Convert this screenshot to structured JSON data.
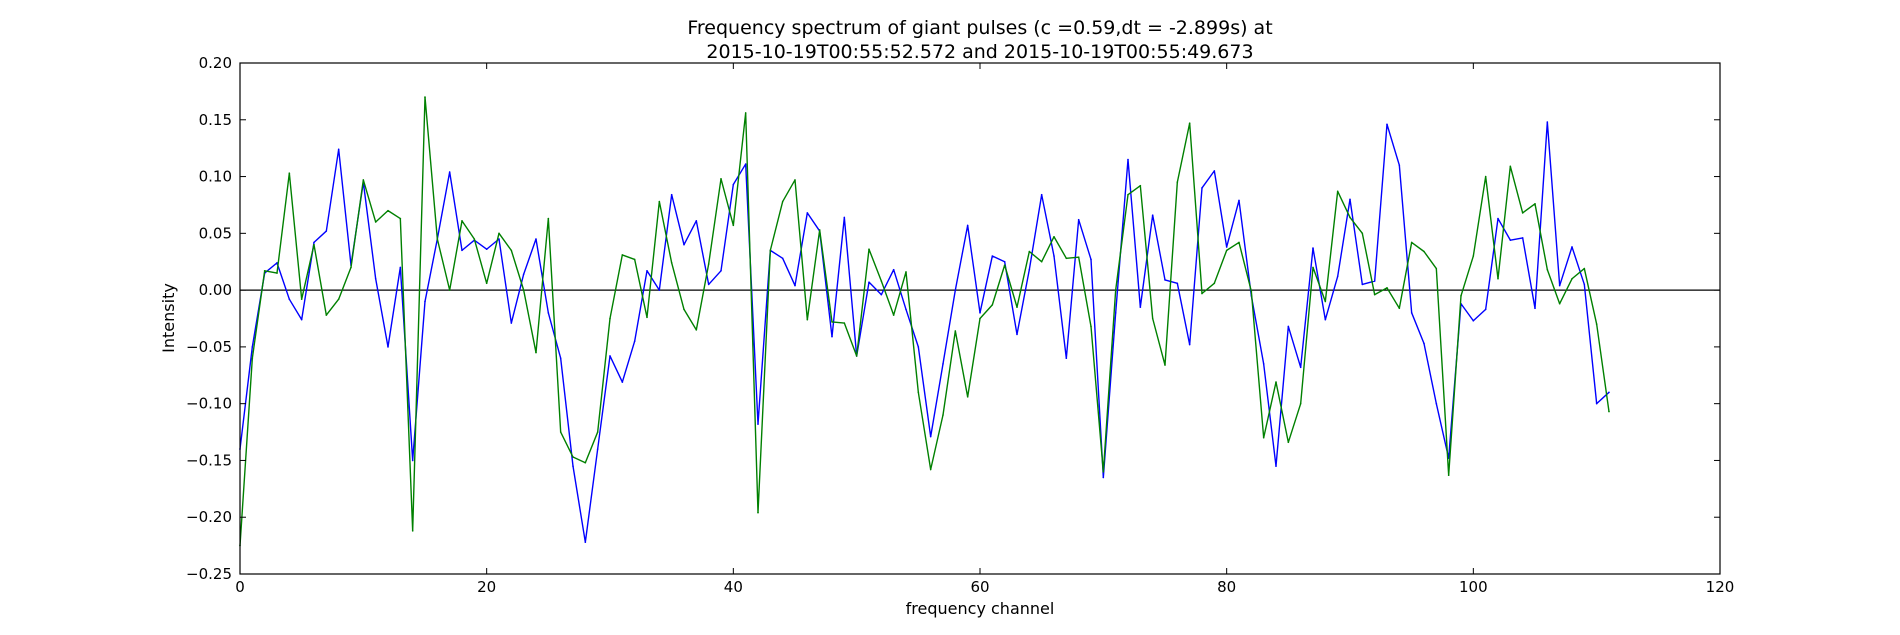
{
  "chart_data": {
    "type": "line",
    "title_line1": "Frequency spectrum of giant pulses (c =0.59,dt = -2.899s) at",
    "title_line2": "2015-10-19T00:55:52.572 and 2015-10-19T00:55:49.673",
    "xlabel": "frequency channel",
    "ylabel": "Intensity",
    "xlim": [
      0,
      120
    ],
    "ylim": [
      -0.25,
      0.2
    ],
    "xticks": [
      0,
      20,
      40,
      60,
      80,
      100,
      120
    ],
    "xtick_labels": [
      "0",
      "20",
      "40",
      "60",
      "80",
      "100",
      "120"
    ],
    "yticks": [
      0.2,
      0.15,
      0.1,
      0.05,
      0.0,
      -0.05,
      -0.1,
      -0.15,
      -0.2,
      -0.25
    ],
    "ytick_labels": [
      "0.20",
      "0.15",
      "0.10",
      "0.05",
      "0.00",
      "−0.05",
      "−0.10",
      "−0.15",
      "−0.20",
      "−0.25"
    ],
    "hline": 0.0,
    "grid": false,
    "series": [
      {
        "color": "#0000ff",
        "x": [
          0,
          1,
          2,
          3,
          4,
          5,
          6,
          7,
          8,
          9,
          10,
          11,
          12,
          13,
          14,
          15,
          16,
          17,
          18,
          19,
          20,
          21,
          22,
          23,
          24,
          25,
          26,
          27,
          28,
          29,
          30,
          31,
          32,
          33,
          34,
          35,
          36,
          37,
          38,
          39,
          40,
          41,
          42,
          43,
          44,
          45,
          46,
          47,
          48,
          49,
          50,
          51,
          52,
          53,
          54,
          55,
          56,
          57,
          58,
          59,
          60,
          61,
          62,
          63,
          64,
          65,
          66,
          67,
          68,
          69,
          70,
          71,
          72,
          73,
          74,
          75,
          76,
          77,
          78,
          79,
          80,
          81,
          82,
          83,
          84,
          85,
          86,
          87,
          88,
          89,
          90,
          91,
          92,
          93,
          94,
          95,
          96,
          97,
          98,
          99,
          100,
          101,
          102,
          103,
          104,
          105,
          106,
          107,
          108,
          109,
          110,
          111
        ],
        "y": [
          -0.14,
          -0.05,
          0.015,
          0.024,
          -0.008,
          -0.026,
          0.042,
          0.052,
          0.124,
          0.022,
          0.095,
          0.01,
          -0.05,
          0.02,
          -0.15,
          -0.01,
          0.045,
          0.104,
          0.035,
          0.044,
          0.036,
          0.045,
          -0.029,
          0.014,
          0.045,
          -0.02,
          -0.06,
          -0.155,
          -0.222,
          -0.14,
          -0.058,
          -0.081,
          -0.045,
          0.017,
          0.0,
          0.084,
          0.04,
          0.061,
          0.005,
          0.017,
          0.093,
          0.111,
          -0.118,
          0.035,
          0.028,
          0.004,
          0.068,
          0.052,
          -0.041,
          0.064,
          -0.058,
          0.007,
          -0.004,
          0.018,
          -0.017,
          -0.05,
          -0.129,
          -0.065,
          0.0,
          0.057,
          -0.02,
          0.03,
          0.025,
          -0.039,
          0.018,
          0.084,
          0.03,
          -0.06,
          0.062,
          0.027,
          -0.165,
          -0.02,
          0.115,
          -0.015,
          0.066,
          0.009,
          0.006,
          -0.048,
          0.09,
          0.105,
          0.038,
          0.079,
          -0.005,
          -0.065,
          -0.155,
          -0.032,
          -0.068,
          0.037,
          -0.026,
          0.012,
          0.08,
          0.005,
          0.008,
          0.146,
          0.11,
          -0.02,
          -0.047,
          -0.1,
          -0.148,
          -0.012,
          -0.027,
          -0.017,
          0.063,
          0.044,
          0.046,
          -0.016,
          0.148,
          0.004,
          0.038,
          0.005,
          -0.1,
          -0.09
        ]
      },
      {
        "color": "#008000",
        "x": [
          0,
          1,
          2,
          3,
          4,
          5,
          6,
          7,
          8,
          9,
          10,
          11,
          12,
          13,
          14,
          15,
          16,
          17,
          18,
          19,
          20,
          21,
          22,
          23,
          24,
          25,
          26,
          27,
          28,
          29,
          30,
          31,
          32,
          33,
          34,
          35,
          36,
          37,
          38,
          39,
          40,
          41,
          42,
          43,
          44,
          45,
          46,
          47,
          48,
          49,
          50,
          51,
          52,
          53,
          54,
          55,
          56,
          57,
          58,
          59,
          60,
          61,
          62,
          63,
          64,
          65,
          66,
          67,
          68,
          69,
          70,
          71,
          72,
          73,
          74,
          75,
          76,
          77,
          78,
          79,
          80,
          81,
          82,
          83,
          84,
          85,
          86,
          87,
          88,
          89,
          90,
          91,
          92,
          93,
          94,
          95,
          96,
          97,
          98,
          99,
          100,
          101,
          102,
          103,
          104,
          105,
          106,
          107,
          108,
          109,
          110,
          111
        ],
        "y": [
          -0.225,
          -0.06,
          0.017,
          0.015,
          0.103,
          -0.008,
          0.04,
          -0.022,
          -0.008,
          0.02,
          0.097,
          0.06,
          0.07,
          0.063,
          -0.212,
          0.17,
          0.045,
          0.0,
          0.061,
          0.045,
          0.006,
          0.05,
          0.035,
          0.0,
          -0.055,
          0.063,
          -0.125,
          -0.147,
          -0.152,
          -0.125,
          -0.025,
          0.031,
          0.027,
          -0.024,
          0.078,
          0.024,
          -0.017,
          -0.035,
          0.023,
          0.098,
          0.057,
          0.156,
          -0.196,
          0.035,
          0.078,
          0.097,
          -0.026,
          0.053,
          -0.028,
          -0.029,
          -0.058,
          0.036,
          0.008,
          -0.022,
          0.016,
          -0.09,
          -0.158,
          -0.11,
          -0.036,
          -0.094,
          -0.025,
          -0.013,
          0.022,
          -0.015,
          0.034,
          0.025,
          0.047,
          0.028,
          0.029,
          -0.032,
          -0.16,
          0.0,
          0.084,
          0.092,
          -0.025,
          -0.066,
          0.095,
          0.147,
          -0.003,
          0.006,
          0.035,
          0.042,
          -0.001,
          -0.13,
          -0.081,
          -0.134,
          -0.1,
          0.02,
          -0.01,
          0.087,
          0.064,
          0.05,
          -0.004,
          0.002,
          -0.016,
          0.042,
          0.034,
          0.019,
          -0.163,
          -0.005,
          0.03,
          0.1,
          0.01,
          0.109,
          0.068,
          0.076,
          0.018,
          -0.012,
          0.01,
          0.019,
          -0.03,
          -0.107
        ]
      }
    ]
  }
}
